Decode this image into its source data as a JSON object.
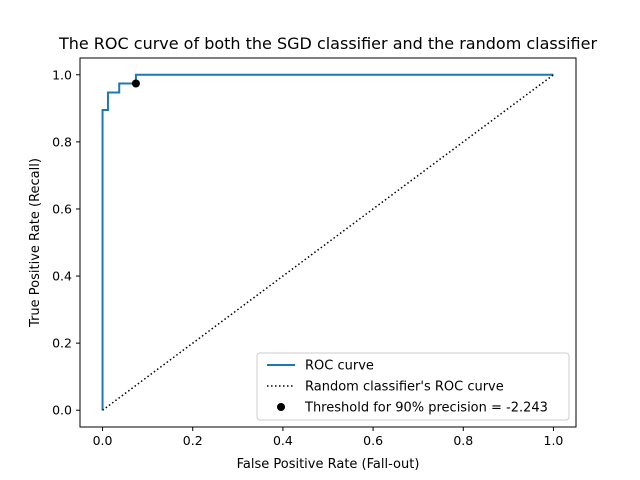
{
  "chart_data": {
    "type": "line",
    "title": "The ROC curve of both the SGD classifier and the random classifier",
    "xlabel": "False Positive Rate (Fall-out)",
    "ylabel": "True Positive Rate (Recall)",
    "xlim": [
      -0.05,
      1.05
    ],
    "ylim": [
      -0.05,
      1.05
    ],
    "xticks": [
      "0.0",
      "0.2",
      "0.4",
      "0.6",
      "0.8",
      "1.0"
    ],
    "yticks": [
      "0.0",
      "0.2",
      "0.4",
      "0.6",
      "0.8",
      "1.0"
    ],
    "grid": false,
    "legend_position": "lower-right",
    "series": [
      {
        "name": "ROC curve",
        "style": "solid",
        "color": "#1f77b4",
        "x": [
          0.0,
          0.0,
          0.012,
          0.012,
          0.037,
          0.037,
          0.074,
          0.074,
          1.0
        ],
        "y": [
          0.0,
          0.895,
          0.895,
          0.947,
          0.947,
          0.974,
          0.974,
          1.0,
          1.0
        ]
      },
      {
        "name": "Random classifier's ROC curve",
        "style": "dotted",
        "color": "#000000",
        "x": [
          0.0,
          1.0
        ],
        "y": [
          0.0,
          1.0
        ]
      },
      {
        "name": "Threshold for 90% precision = -2.243",
        "style": "marker",
        "color": "#000000",
        "x": [
          0.074
        ],
        "y": [
          0.974
        ]
      }
    ]
  }
}
